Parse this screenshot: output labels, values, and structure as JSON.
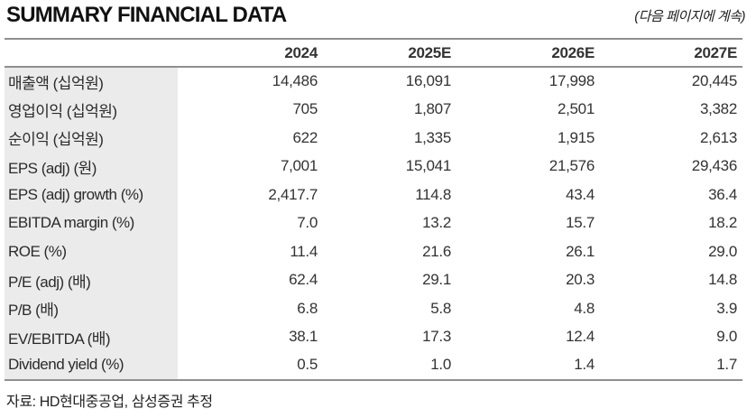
{
  "header": {
    "title": "SUMMARY FINANCIAL DATA",
    "continuation_note": "(다음 페이지에 계속)"
  },
  "table": {
    "columns": [
      "2024",
      "2025E",
      "2026E",
      "2027E"
    ],
    "rows": [
      {
        "label": "매출액 (십억원)",
        "values": [
          "14,486",
          "16,091",
          "17,998",
          "20,445"
        ]
      },
      {
        "label": "영업이익 (십억원)",
        "values": [
          "705",
          "1,807",
          "2,501",
          "3,382"
        ]
      },
      {
        "label": "순이익 (십억원)",
        "values": [
          "622",
          "1,335",
          "1,915",
          "2,613"
        ]
      },
      {
        "label": "EPS (adj) (원)",
        "values": [
          "7,001",
          "15,041",
          "21,576",
          "29,436"
        ]
      },
      {
        "label": "EPS (adj) growth (%)",
        "values": [
          "2,417.7",
          "114.8",
          "43.4",
          "36.4"
        ]
      },
      {
        "label": "EBITDA margin (%)",
        "values": [
          "7.0",
          "13.2",
          "15.7",
          "18.2"
        ]
      },
      {
        "label": "ROE (%)",
        "values": [
          "11.4",
          "21.6",
          "26.1",
          "29.0"
        ]
      },
      {
        "label": "P/E (adj) (배)",
        "values": [
          "62.4",
          "29.1",
          "20.3",
          "14.8"
        ]
      },
      {
        "label": "P/B (배)",
        "values": [
          "6.8",
          "5.8",
          "4.8",
          "3.9"
        ]
      },
      {
        "label": "EV/EBITDA (배)",
        "values": [
          "38.1",
          "17.3",
          "12.4",
          "9.0"
        ]
      },
      {
        "label": "Dividend yield (%)",
        "values": [
          "0.5",
          "1.0",
          "1.4",
          "1.7"
        ]
      }
    ]
  },
  "footer": {
    "source": "자료: HD현대중공업, 삼성증권 추정"
  },
  "colors": {
    "rule_gray": "#8f8f8f",
    "label_column_bg": "#ebebeb",
    "text": "#1a1a1a"
  }
}
